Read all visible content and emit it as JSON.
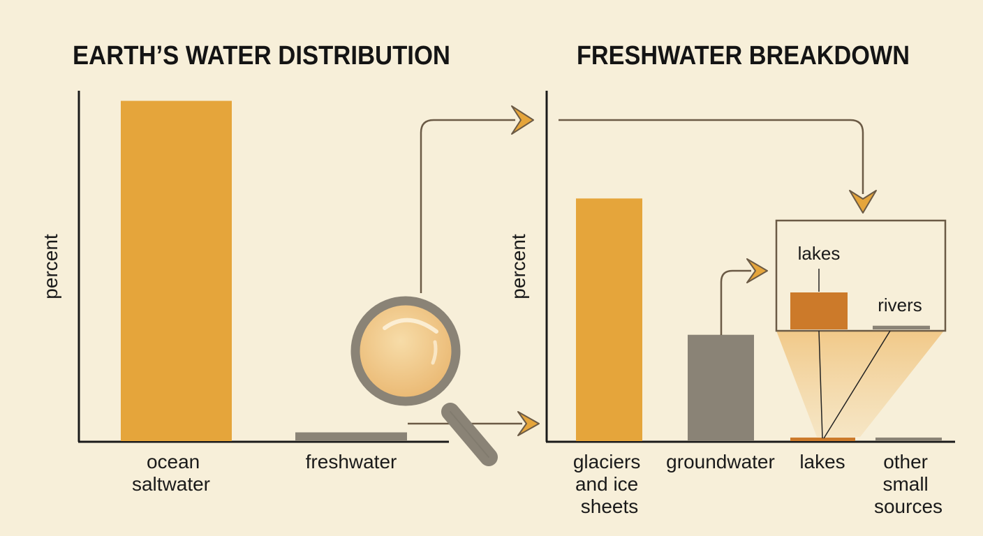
{
  "chart_data": [
    {
      "type": "bar",
      "title": "EARTH’S WATER DISTRIBUTION",
      "xlabel": "",
      "ylabel": "percent",
      "ylim": [
        0,
        100
      ],
      "grid": false,
      "categories": [
        "ocean saltwater",
        "freshwater"
      ],
      "values": [
        97.5,
        2.5
      ],
      "colors": [
        "#e5a53b",
        "#8a8376"
      ]
    },
    {
      "type": "bar",
      "title": "FRESHWATER BREAKDOWN",
      "xlabel": "",
      "ylabel": "percent",
      "ylim": [
        0,
        100
      ],
      "grid": false,
      "categories": [
        "glaciers and ice sheets",
        "groundwater",
        "lakes",
        "other small sources"
      ],
      "values": [
        68.7,
        30.1,
        1.0,
        1.0
      ],
      "colors": [
        "#e5a53b",
        "#8a8376",
        "#cc7a2a",
        "#8a8376"
      ],
      "inset": {
        "categories": [
          "lakes",
          "rivers"
        ],
        "values": [
          1.0,
          0.1
        ],
        "colors": [
          "#cc7a2a",
          "#8a8376"
        ]
      }
    }
  ],
  "icons": {
    "magnifier": "magnifying-glass-icon",
    "arrow": "arrow-right-icon"
  },
  "colors": {
    "background": "#f7efd9",
    "accent": "#e5a53b",
    "neutral": "#8a8376",
    "lakes": "#cc7a2a",
    "connector": "#6b5a45"
  }
}
